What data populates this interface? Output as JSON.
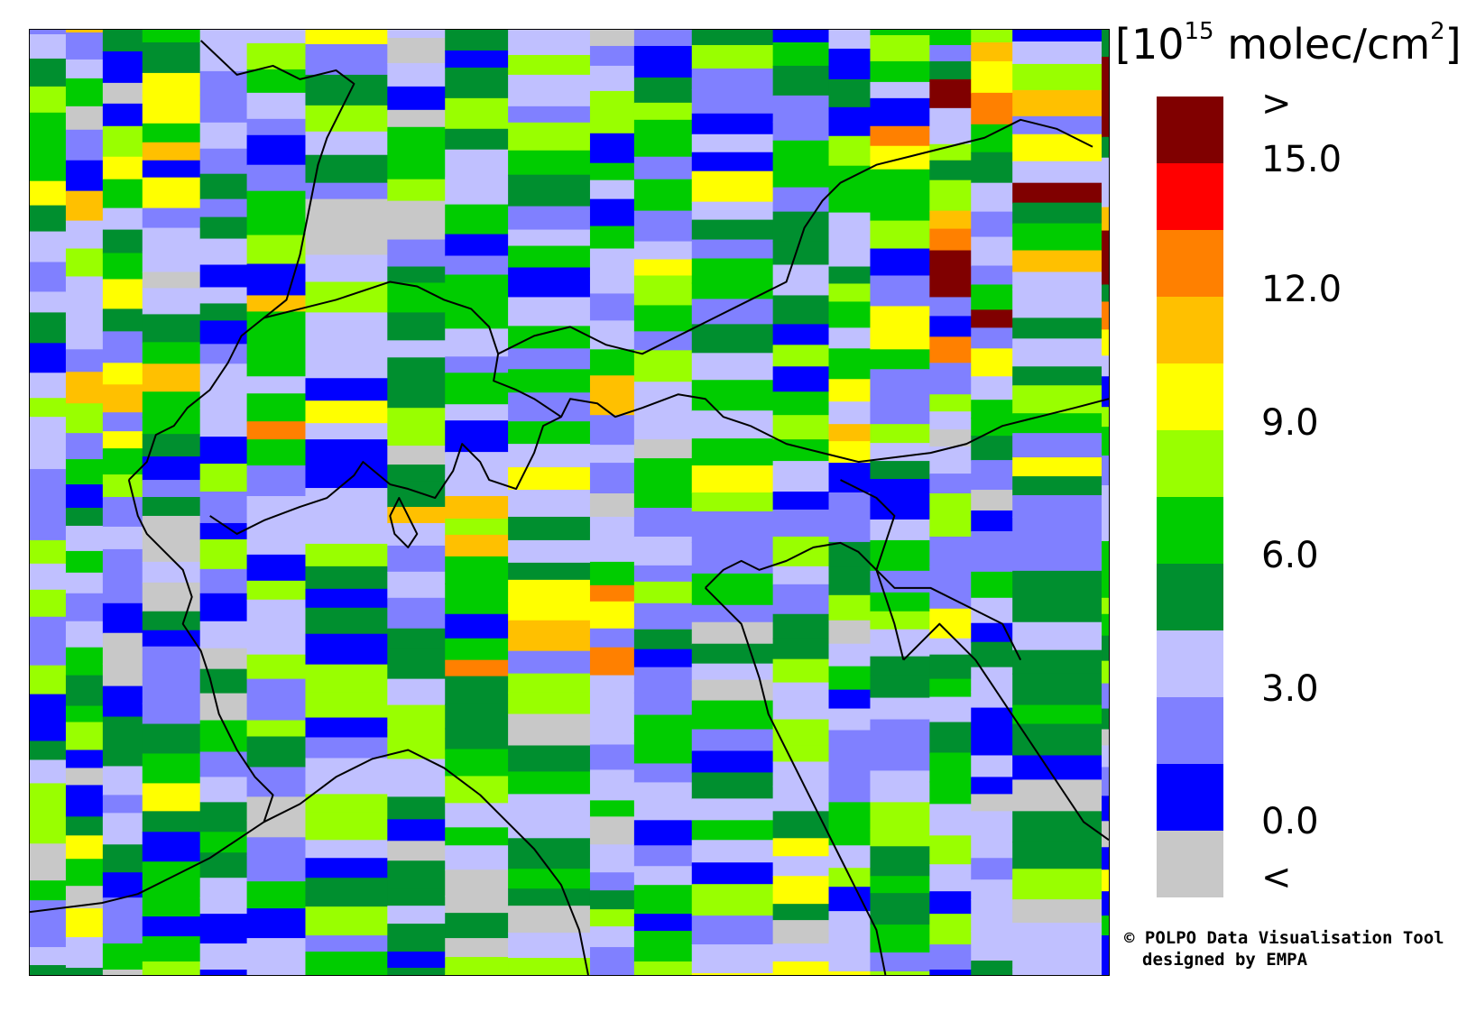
{
  "unit": {
    "prefix": "[10",
    "exponent": "15",
    "suffix": " molec/cm",
    "square": "2",
    "close": "]"
  },
  "colorbar": {
    "colors": [
      "#800000",
      "#ff0000",
      "#ff8000",
      "#ffc000",
      "#ffff00",
      "#99ff00",
      "#00cc00",
      "#008f2f",
      "#c0c0ff",
      "#8080ff",
      "#0000ff",
      "#c8c8c8"
    ],
    "labels": [
      ">",
      "15.0",
      "12.0",
      "9.0",
      "6.0",
      "3.0",
      "0.0",
      "<"
    ]
  },
  "credit": {
    "line1": "© POLPO Data Visualisation Tool",
    "line2": "designed by EMPA"
  },
  "map": {
    "region": "Northern Italy and Alpine region",
    "has_country_borders": true
  }
}
